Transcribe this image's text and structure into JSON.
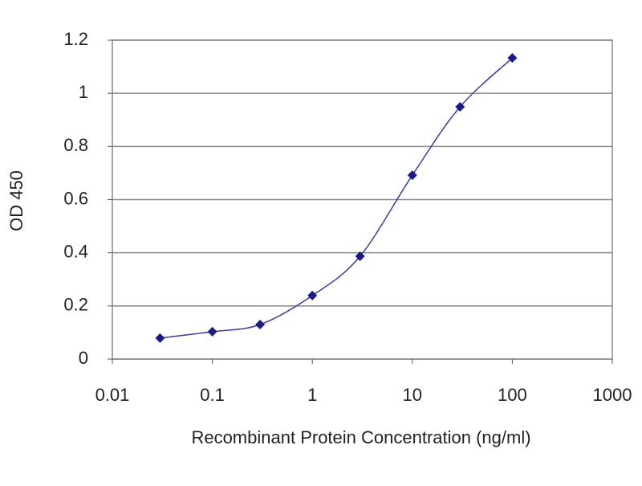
{
  "chart_data": {
    "type": "line",
    "x_label": "Recombinant Protein Concentration (ng/ml)",
    "y_label": "OD 450",
    "x": [
      0.03,
      0.1,
      0.3,
      1,
      3,
      10,
      30,
      100
    ],
    "series": [
      {
        "color": "#1a1a8c",
        "values": [
          0.079,
          0.103,
          0.13,
          0.239,
          0.387,
          0.692,
          0.949,
          1.133
        ]
      }
    ],
    "xscale": "log",
    "xlim": [
      0.01,
      1000
    ],
    "xticks": [
      0.01,
      0.1,
      1,
      10,
      100,
      1000
    ],
    "ylim": [
      0,
      1.2
    ],
    "yticks": [
      0,
      0.2,
      0.4,
      0.6,
      0.8,
      1,
      1.2
    ],
    "grid": true
  }
}
